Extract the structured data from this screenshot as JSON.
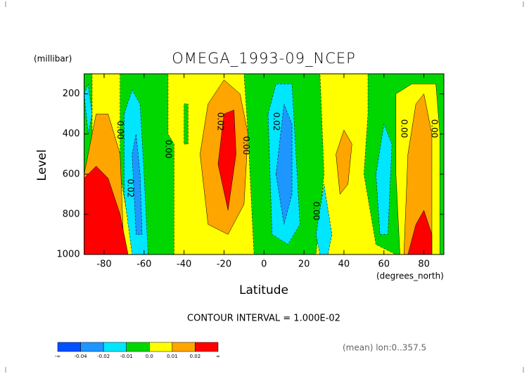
{
  "chart_data": {
    "type": "contour",
    "title": "OMEGA_1993-09_NCEP",
    "y_unit": "(millibar)",
    "ylabel": "Level",
    "xlabel": "Latitude",
    "x_unit": "(degrees_north)",
    "note": "CONTOUR INTERVAL = 1.000E-02",
    "footer": "(mean) lon:0..357.5",
    "xlim": [
      -90,
      90
    ],
    "xticks": [
      -80,
      -60,
      -40,
      -20,
      0,
      20,
      40,
      60,
      80
    ],
    "ylim": [
      1000,
      100
    ],
    "yticks": [
      200,
      400,
      600,
      800,
      1000
    ],
    "colorbar": {
      "colors": [
        "#0050ff",
        "#1e96ff",
        "#00e6ff",
        "#00d700",
        "#ffff00",
        "#ffa500",
        "#ff0000"
      ],
      "ticks": [
        "-∞",
        -0.04,
        -0.02,
        -0.01,
        {
          "value": 0,
          "label": "0.0"
        },
        0.01,
        0.02,
        "∞"
      ]
    },
    "regions": [
      {
        "value": 0,
        "color": "#ffff00",
        "points": [
          [
            -90,
            100
          ],
          [
            90,
            100
          ],
          [
            90,
            1000
          ],
          [
            -90,
            1000
          ]
        ]
      },
      {
        "value": -0.01,
        "color": "#00d700",
        "points": [
          [
            -90,
            100
          ],
          [
            -86,
            100
          ],
          [
            -86,
            1000
          ],
          [
            -90,
            1000
          ]
        ]
      },
      {
        "value": -0.01,
        "color": "#00d700",
        "points": [
          [
            -72,
            100
          ],
          [
            -48,
            100
          ],
          [
            -48,
            400
          ],
          [
            -45,
            450
          ],
          [
            -45,
            1000
          ],
          [
            -65,
            1000
          ],
          [
            -72,
            600
          ]
        ]
      },
      {
        "value": -0.01,
        "color": "#00d700",
        "points": [
          [
            -40,
            250
          ],
          [
            -38,
            250
          ],
          [
            -38,
            450
          ],
          [
            -40,
            450
          ]
        ]
      },
      {
        "value": -0.01,
        "color": "#00d700",
        "points": [
          [
            -10,
            100
          ],
          [
            28,
            100
          ],
          [
            30,
            600
          ],
          [
            26,
            1000
          ],
          [
            -5,
            1000
          ],
          [
            -8,
            400
          ]
        ]
      },
      {
        "value": -0.01,
        "color": "#00d700",
        "points": [
          [
            52,
            100
          ],
          [
            90,
            100
          ],
          [
            90,
            1000
          ],
          [
            66,
            1000
          ],
          [
            56,
            950
          ],
          [
            50,
            600
          ],
          [
            52,
            300
          ]
        ]
      },
      {
        "value": 0,
        "color": "#ffff00",
        "points": [
          [
            66,
            200
          ],
          [
            74,
            150
          ],
          [
            86,
            150
          ],
          [
            88,
            400
          ],
          [
            88,
            1000
          ],
          [
            68,
            1000
          ],
          [
            66,
            600
          ]
        ]
      },
      {
        "value": 0.01,
        "color": "#ffa500",
        "points": [
          [
            -90,
            600
          ],
          [
            -84,
            300
          ],
          [
            -78,
            300
          ],
          [
            -72,
            500
          ],
          [
            -70,
            1000
          ],
          [
            -90,
            1000
          ]
        ]
      },
      {
        "value": 0.01,
        "color": "#ffa500",
        "points": [
          [
            -32,
            500
          ],
          [
            -28,
            250
          ],
          [
            -20,
            130
          ],
          [
            -12,
            200
          ],
          [
            -8,
            400
          ],
          [
            -10,
            750
          ],
          [
            -18,
            900
          ],
          [
            -28,
            850
          ]
        ]
      },
      {
        "value": 0.01,
        "color": "#ffa500",
        "points": [
          [
            36,
            500
          ],
          [
            40,
            380
          ],
          [
            44,
            450
          ],
          [
            42,
            650
          ],
          [
            38,
            700
          ]
        ]
      },
      {
        "value": 0.01,
        "color": "#ffa500",
        "points": [
          [
            70,
            1000
          ],
          [
            72,
            500
          ],
          [
            76,
            250
          ],
          [
            80,
            200
          ],
          [
            84,
            400
          ],
          [
            84,
            1000
          ]
        ]
      },
      {
        "value": 0.02,
        "color": "#ff0000",
        "points": [
          [
            -90,
            620
          ],
          [
            -84,
            560
          ],
          [
            -78,
            620
          ],
          [
            -72,
            800
          ],
          [
            -68,
            1000
          ],
          [
            -90,
            1000
          ]
        ]
      },
      {
        "value": 0.02,
        "color": "#ff0000",
        "points": [
          [
            -23,
            550
          ],
          [
            -20,
            300
          ],
          [
            -15,
            280
          ],
          [
            -14,
            500
          ],
          [
            -18,
            780
          ]
        ]
      },
      {
        "value": 0.02,
        "color": "#ff0000",
        "points": [
          [
            72,
            1000
          ],
          [
            76,
            850
          ],
          [
            80,
            780
          ],
          [
            84,
            900
          ],
          [
            84,
            1000
          ]
        ]
      },
      {
        "value": -0.02,
        "color": "#00e6ff",
        "points": [
          [
            -70,
            300
          ],
          [
            -66,
            180
          ],
          [
            -62,
            250
          ],
          [
            -60,
            600
          ],
          [
            -58,
            1000
          ],
          [
            -66,
            1000
          ],
          [
            -70,
            700
          ]
        ]
      },
      {
        "value": -0.02,
        "color": "#00e6ff",
        "points": [
          [
            2,
            300
          ],
          [
            6,
            150
          ],
          [
            14,
            150
          ],
          [
            16,
            500
          ],
          [
            18,
            850
          ],
          [
            12,
            950
          ],
          [
            4,
            900
          ]
        ]
      },
      {
        "value": -0.02,
        "color": "#00e6ff",
        "points": [
          [
            26,
            900
          ],
          [
            30,
            650
          ],
          [
            34,
            900
          ],
          [
            32,
            1000
          ],
          [
            28,
            1000
          ]
        ]
      },
      {
        "value": -0.02,
        "color": "#00e6ff",
        "points": [
          [
            56,
            600
          ],
          [
            60,
            350
          ],
          [
            64,
            450
          ],
          [
            62,
            900
          ],
          [
            58,
            900
          ]
        ]
      },
      {
        "value": -0.02,
        "color": "#00e6ff",
        "points": [
          [
            -90,
            200
          ],
          [
            -88,
            150
          ],
          [
            -86,
            300
          ],
          [
            -88,
            400
          ]
        ]
      },
      {
        "value": -0.04,
        "color": "#1e96ff",
        "points": [
          [
            -66,
            500
          ],
          [
            -64,
            400
          ],
          [
            -62,
            600
          ],
          [
            -61,
            900
          ],
          [
            -64,
            900
          ]
        ]
      },
      {
        "value": -0.04,
        "color": "#1e96ff",
        "points": [
          [
            6,
            600
          ],
          [
            10,
            250
          ],
          [
            14,
            350
          ],
          [
            14,
            700
          ],
          [
            10,
            850
          ]
        ]
      }
    ],
    "contour_labels": [
      {
        "text": "0.00",
        "lat": -72,
        "level": 380
      },
      {
        "text": "0.00",
        "lat": -48,
        "level": 475
      },
      {
        "text": "0.02",
        "lat": -67,
        "level": 670
      },
      {
        "text": "0.02",
        "lat": -22,
        "level": 338
      },
      {
        "text": "0.00",
        "lat": -9,
        "level": 457
      },
      {
        "text": "0.02",
        "lat": 6,
        "level": 338
      },
      {
        "text": "0.00",
        "lat": 26,
        "level": 783
      },
      {
        "text": "0.00",
        "lat": 70,
        "level": 373
      },
      {
        "text": "0.00",
        "lat": 85,
        "level": 373
      }
    ]
  }
}
